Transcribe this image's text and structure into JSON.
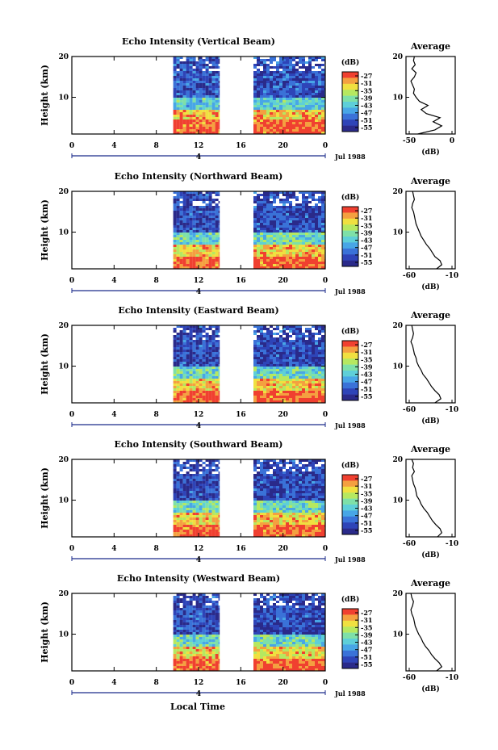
{
  "figure": {
    "xlabel": "Local Time",
    "date_label": "Jul 1988",
    "colors": [
      "#2a2a8a",
      "#2e44b8",
      "#3a72d8",
      "#48a6e6",
      "#5ecfd8",
      "#7ee0a8",
      "#b6e860",
      "#f0e040",
      "#f4a040",
      "#f04030"
    ]
  },
  "chart_data": [
    {
      "type": "heatmap",
      "title": "Echo Intensity (Vertical Beam)",
      "ylabel": "Height (km)",
      "x_ticks": [
        "0",
        "4",
        "8",
        "12",
        "16",
        "20",
        "0"
      ],
      "x_day_marker": "4",
      "y_ticks": [
        "10",
        "20"
      ],
      "xlim": [
        0,
        24
      ],
      "ylim": [
        1,
        20
      ],
      "data_intervals": [
        [
          9.6,
          14
        ],
        [
          17.2,
          24
        ]
      ],
      "colorbar": {
        "label": "(dB)",
        "ticks": [
          "-27",
          "-31",
          "-35",
          "-39",
          "-43",
          "-47",
          "-51",
          "-55"
        ]
      },
      "profile": {
        "title": "Average",
        "xlabel": "(dB)",
        "x_ticks": [
          "-50",
          "0"
        ],
        "xlim": [
          -50,
          0
        ],
        "y_ticks": [
          "10",
          "20"
        ],
        "heights": [
          1,
          2,
          3,
          4,
          5,
          6,
          7,
          8,
          9,
          10,
          11,
          12,
          13,
          14,
          15,
          16,
          17,
          18,
          19,
          20
        ],
        "values": [
          -40,
          -20,
          -12,
          -22,
          -14,
          -30,
          -36,
          -28,
          -38,
          -42,
          -45,
          -44,
          -46,
          -48,
          -44,
          -42,
          -47,
          -43,
          -45,
          -44
        ]
      }
    },
    {
      "type": "heatmap",
      "title": "Echo Intensity (Northward Beam)",
      "ylabel": "Height (km)",
      "x_ticks": [
        "0",
        "4",
        "8",
        "12",
        "16",
        "20",
        "0"
      ],
      "x_day_marker": "4",
      "y_ticks": [
        "10",
        "20"
      ],
      "xlim": [
        0,
        24
      ],
      "ylim": [
        1,
        20
      ],
      "data_intervals": [
        [
          9.6,
          14
        ],
        [
          17.2,
          24
        ]
      ],
      "colorbar": {
        "label": "(dB)",
        "ticks": [
          "-27",
          "-31",
          "-35",
          "-39",
          "-43",
          "-47",
          "-51",
          "-55"
        ]
      },
      "profile": {
        "title": "Average",
        "xlabel": "(dB)",
        "x_ticks": [
          "-60",
          "-10"
        ],
        "xlim": [
          -60,
          -10
        ],
        "y_ticks": [
          "10",
          "20"
        ],
        "heights": [
          1,
          2,
          3,
          4,
          5,
          6,
          7,
          8,
          9,
          10,
          11,
          12,
          13,
          14,
          15,
          16,
          17,
          18,
          19,
          20
        ],
        "values": [
          -28,
          -22,
          -24,
          -30,
          -33,
          -36,
          -40,
          -43,
          -46,
          -48,
          -50,
          -52,
          -53,
          -54,
          -55,
          -57,
          -56,
          -54,
          -55,
          -56
        ]
      }
    },
    {
      "type": "heatmap",
      "title": "Echo Intensity (Eastward Beam)",
      "ylabel": "Height (km)",
      "x_ticks": [
        "0",
        "4",
        "8",
        "12",
        "16",
        "20",
        "0"
      ],
      "x_day_marker": "4",
      "y_ticks": [
        "10",
        "20"
      ],
      "xlim": [
        0,
        24
      ],
      "ylim": [
        1,
        20
      ],
      "data_intervals": [
        [
          9.6,
          14
        ],
        [
          17.2,
          24
        ]
      ],
      "colorbar": {
        "label": "(dB)",
        "ticks": [
          "-27",
          "-31",
          "-35",
          "-39",
          "-43",
          "-47",
          "-51",
          "-55"
        ]
      },
      "profile": {
        "title": "Average",
        "xlabel": "(dB)",
        "x_ticks": [
          "-60",
          "-10"
        ],
        "xlim": [
          -60,
          -10
        ],
        "y_ticks": [
          "10",
          "20"
        ],
        "heights": [
          1,
          2,
          3,
          4,
          5,
          6,
          7,
          8,
          9,
          10,
          11,
          12,
          13,
          14,
          15,
          16,
          17,
          18,
          19,
          20
        ],
        "values": [
          -30,
          -23,
          -25,
          -30,
          -34,
          -37,
          -40,
          -44,
          -46,
          -49,
          -51,
          -52,
          -54,
          -55,
          -56,
          -58,
          -56,
          -55,
          -56,
          -57
        ]
      }
    },
    {
      "type": "heatmap",
      "title": "Echo Intensity (Southward Beam)",
      "ylabel": "Height (km)",
      "x_ticks": [
        "0",
        "4",
        "8",
        "12",
        "16",
        "20",
        "0"
      ],
      "x_day_marker": "4",
      "y_ticks": [
        "10",
        "20"
      ],
      "xlim": [
        0,
        24
      ],
      "ylim": [
        1,
        20
      ],
      "data_intervals": [
        [
          9.6,
          14
        ],
        [
          17.2,
          24
        ]
      ],
      "colorbar": {
        "label": "(dB)",
        "ticks": [
          "-27",
          "-31",
          "-35",
          "-39",
          "-43",
          "-47",
          "-51",
          "-55"
        ]
      },
      "profile": {
        "title": "Average",
        "xlabel": "(dB)",
        "x_ticks": [
          "-60",
          "-10"
        ],
        "xlim": [
          -60,
          -10
        ],
        "y_ticks": [
          "10",
          "20"
        ],
        "heights": [
          1,
          2,
          3,
          4,
          5,
          6,
          7,
          8,
          9,
          10,
          11,
          12,
          13,
          14,
          15,
          16,
          17,
          18,
          19,
          20
        ],
        "values": [
          -27,
          -22,
          -24,
          -29,
          -33,
          -36,
          -39,
          -43,
          -46,
          -48,
          -51,
          -52,
          -53,
          -55,
          -56,
          -57,
          -54,
          -56,
          -55,
          -57
        ]
      }
    },
    {
      "type": "heatmap",
      "title": "Echo Intensity (Westward Beam)",
      "ylabel": "Height (km)",
      "x_ticks": [
        "0",
        "4",
        "8",
        "12",
        "16",
        "20",
        "0"
      ],
      "x_day_marker": "4",
      "y_ticks": [
        "10",
        "20"
      ],
      "xlim": [
        0,
        24
      ],
      "ylim": [
        1,
        20
      ],
      "data_intervals": [
        [
          9.6,
          14
        ],
        [
          17.2,
          24
        ]
      ],
      "colorbar": {
        "label": "(dB)",
        "ticks": [
          "-27",
          "-31",
          "-35",
          "-39",
          "-43",
          "-47",
          "-51",
          "-55"
        ]
      },
      "profile": {
        "title": "Average",
        "xlabel": "(dB)",
        "x_ticks": [
          "-60",
          "-10"
        ],
        "xlim": [
          -60,
          -10
        ],
        "y_ticks": [
          "10",
          "20"
        ],
        "heights": [
          1,
          2,
          3,
          4,
          5,
          6,
          7,
          8,
          9,
          10,
          11,
          12,
          13,
          14,
          15,
          16,
          17,
          18,
          19,
          20
        ],
        "values": [
          -28,
          -22,
          -25,
          -30,
          -34,
          -37,
          -41,
          -44,
          -46,
          -49,
          -51,
          -53,
          -54,
          -55,
          -57,
          -58,
          -56,
          -55,
          -57,
          -58
        ]
      }
    }
  ]
}
